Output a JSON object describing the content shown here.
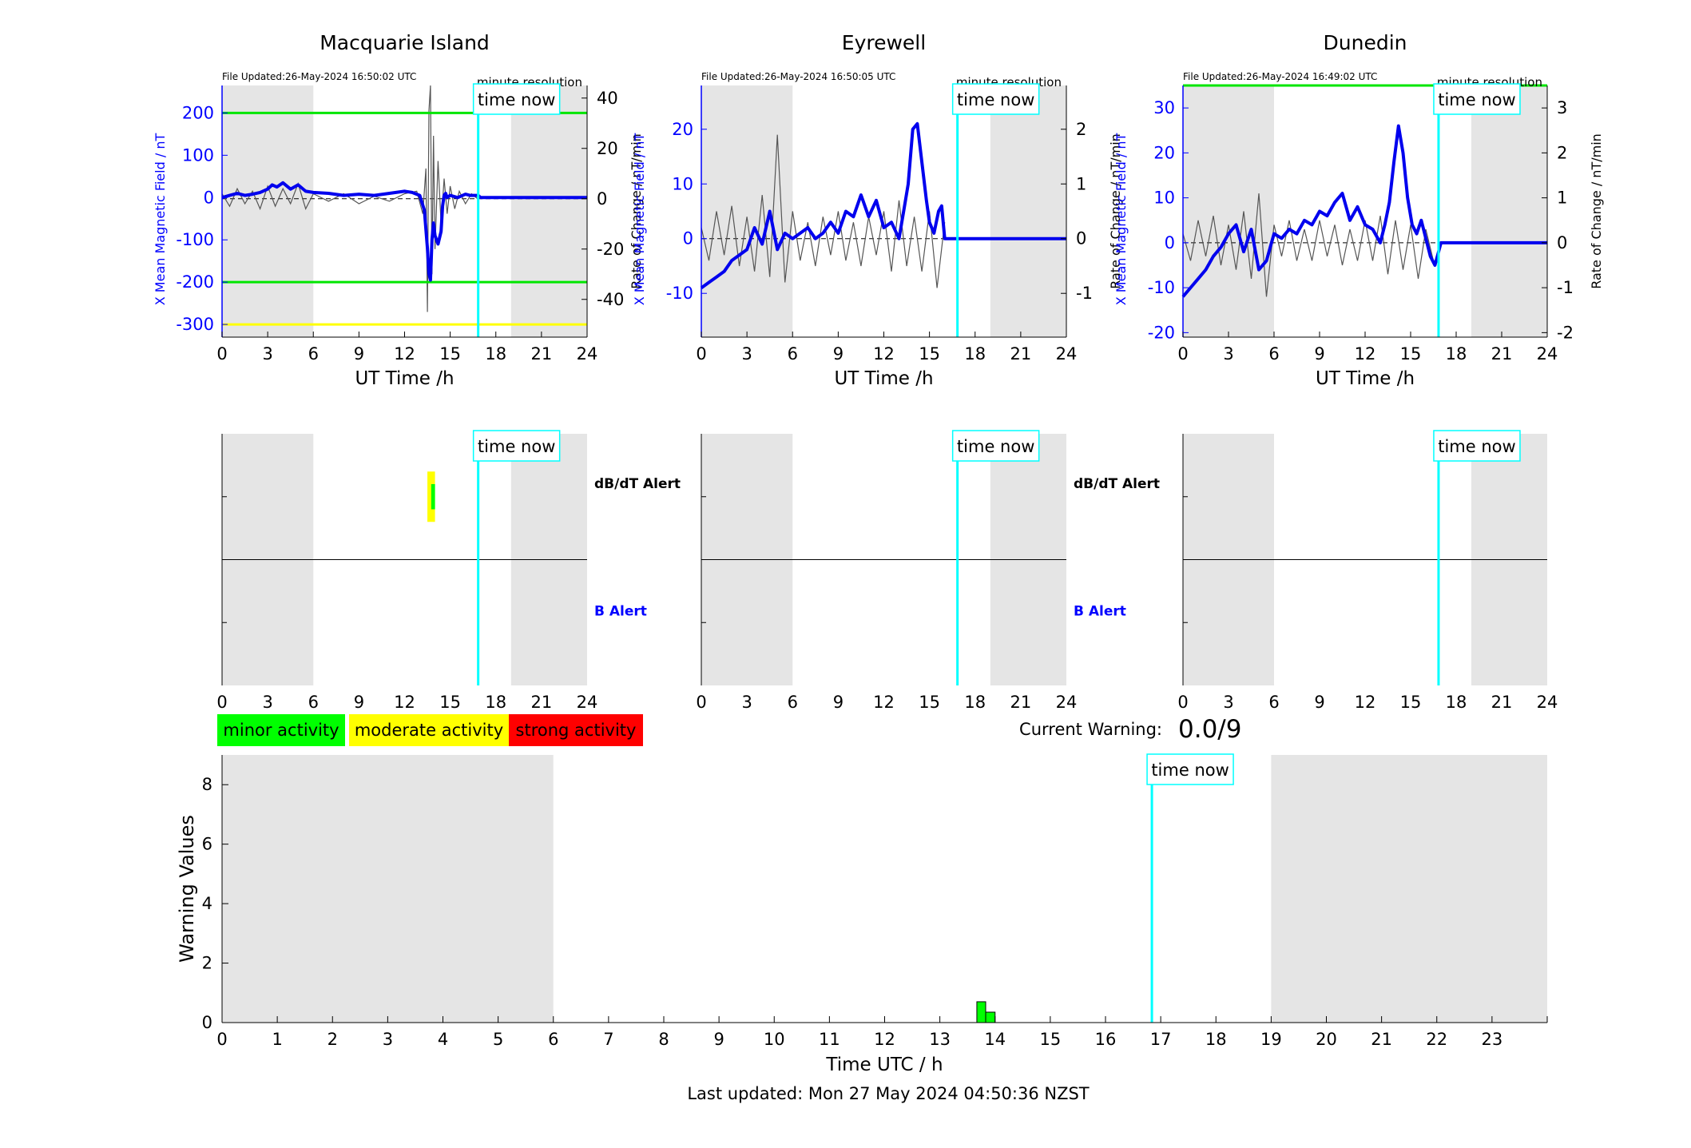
{
  "footer": {
    "last_updated": "Last updated: Mon 27 May 2024 04:50:36 NZST"
  },
  "colors": {
    "night_shade": "#e5e5e5",
    "field_line": "#0000ee",
    "rate_line": "#555555",
    "time_now": "#00ffff",
    "threshold_green": "#00e600",
    "threshold_yellow": "#ffff00",
    "minor": "#00ff00",
    "moderate": "#ffff00",
    "strong": "#ff0000",
    "label_blue": "#0000ff"
  },
  "legend": {
    "items": [
      {
        "label": "minor activity",
        "color": "#00ff00"
      },
      {
        "label": "moderate activity",
        "color": "#ffff00"
      },
      {
        "label": "strong activity",
        "color": "#ff0000"
      }
    ]
  },
  "current_warning": {
    "label": "Current Warning:",
    "value": "0.0/9"
  },
  "common": {
    "time_now_label": "time now",
    "minute_resolution": "minute resolution",
    "dbdt_alert": "dB/dT Alert",
    "b_alert": "B Alert",
    "x_label": "UT Time /h",
    "y_left_label": "X Mean Magnetic Field / nT",
    "y_right_label": "Rate of Change / nT/min",
    "time_now_hour": 16.84,
    "night_periods": [
      [
        0,
        6
      ],
      [
        19,
        24
      ]
    ]
  },
  "chart_data": [
    {
      "type": "line",
      "title": "Macquarie Island",
      "file_updated": "File Updated:26-May-2024 16:50:02 UTC",
      "xlabel": "UT Time /h",
      "ylabel": "X Mean Magnetic Field / nT",
      "ylabel_right": "Rate of Change / nT/min",
      "xlim": [
        0,
        24
      ],
      "xticks": [
        0,
        3,
        6,
        9,
        12,
        15,
        18,
        21,
        24
      ],
      "ylim": [
        -330,
        265
      ],
      "yticks": [
        -300,
        -200,
        -100,
        0,
        100,
        200
      ],
      "ylim_right": [
        -55,
        45
      ],
      "yticks_right": [
        -40,
        -20,
        0,
        20,
        40
      ],
      "thresholds": [
        {
          "y": 200,
          "color": "#00e600"
        },
        {
          "y": -200,
          "color": "#00e600"
        },
        {
          "y": -300,
          "color": "#ffff00"
        }
      ],
      "series": [
        {
          "axis": "left",
          "x": [
            0,
            0.5,
            1,
            1.5,
            2,
            2.5,
            3,
            3.3,
            3.6,
            4,
            4.5,
            5,
            5.5,
            6,
            7,
            8,
            9,
            10,
            11,
            12,
            12.5,
            13,
            13.3,
            13.5,
            13.6,
            13.7,
            13.75,
            13.8,
            13.9,
            14,
            14.2,
            14.4,
            14.5,
            14.6,
            14.7,
            14.8,
            15,
            15.5,
            16,
            16.3,
            16.5,
            16.84,
            17,
            20,
            24
          ],
          "y": [
            0,
            5,
            10,
            5,
            8,
            12,
            20,
            30,
            25,
            35,
            20,
            30,
            15,
            12,
            10,
            5,
            8,
            5,
            10,
            15,
            12,
            5,
            -30,
            -120,
            -180,
            -195,
            -150,
            -100,
            -60,
            -90,
            -110,
            -80,
            -20,
            5,
            10,
            0,
            5,
            0,
            8,
            5,
            5,
            5,
            0,
            0,
            0
          ]
        },
        {
          "axis": "right",
          "x": [
            0,
            0.5,
            1,
            1.5,
            2,
            2.5,
            3,
            3.5,
            4,
            4.5,
            5,
            5.5,
            6,
            7,
            8,
            9,
            10,
            11,
            12,
            12.8,
            13.2,
            13.4,
            13.5,
            13.6,
            13.7,
            13.8,
            13.9,
            14,
            14.2,
            14.4,
            14.6,
            14.8,
            15,
            15.3,
            15.6,
            16,
            16.4,
            16.8
          ],
          "y": [
            2,
            -3,
            4,
            -2,
            3,
            -4,
            5,
            -3,
            4,
            -2,
            6,
            -4,
            2,
            -1,
            2,
            -2,
            1,
            -1,
            2,
            3,
            -6,
            12,
            -45,
            35,
            45,
            -30,
            25,
            -20,
            15,
            -10,
            8,
            -6,
            5,
            -4,
            3,
            -2,
            2,
            0
          ]
        }
      ],
      "alerts": [
        {
          "row": "dbdt",
          "start": 13.5,
          "end": 14,
          "level": "moderate"
        },
        {
          "row": "dbdt",
          "start": 13.75,
          "end": 14,
          "level": "minor"
        }
      ]
    },
    {
      "type": "line",
      "title": "Eyrewell",
      "file_updated": "File Updated:26-May-2024 16:50:05 UTC",
      "xlabel": "UT Time /h",
      "ylabel": "X Mean Magnetic Field / nT",
      "ylabel_right": "Rate of Change / nT/min",
      "xlim": [
        0,
        24
      ],
      "xticks": [
        0,
        3,
        6,
        9,
        12,
        15,
        18,
        21,
        24
      ],
      "ylim": [
        -18,
        28
      ],
      "yticks": [
        -10,
        0,
        10,
        20
      ],
      "ylim_right": [
        -1.8,
        2.8
      ],
      "yticks_right": [
        -1,
        0,
        1,
        2
      ],
      "thresholds": [],
      "series": [
        {
          "axis": "left",
          "x": [
            0,
            0.5,
            1,
            1.5,
            2,
            2.5,
            3,
            3.5,
            4,
            4.5,
            5,
            5.5,
            6,
            6.5,
            7,
            7.5,
            8,
            8.5,
            9,
            9.5,
            10,
            10.5,
            11,
            11.5,
            12,
            12.5,
            13,
            13.3,
            13.6,
            13.9,
            14.2,
            14.5,
            14.8,
            15,
            15.3,
            15.6,
            15.8,
            16,
            16.84,
            17,
            20,
            24
          ],
          "y": [
            -9,
            -8,
            -7,
            -6,
            -4,
            -3,
            -2,
            2,
            -1,
            5,
            -2,
            1,
            0,
            1,
            2,
            0,
            1,
            3,
            1,
            5,
            4,
            8,
            4,
            7,
            2,
            3,
            0,
            5,
            10,
            20,
            21,
            14,
            7,
            3,
            1,
            5,
            6,
            0,
            0,
            0,
            0,
            0
          ]
        },
        {
          "axis": "right",
          "x": [
            0,
            0.5,
            1,
            1.5,
            2,
            2.5,
            3,
            3.5,
            4,
            4.5,
            5,
            5.5,
            6,
            6.5,
            7,
            7.5,
            8,
            8.5,
            9,
            9.5,
            10,
            10.5,
            11,
            11.5,
            12,
            12.5,
            13,
            13.5,
            14,
            14.5,
            15,
            15.5,
            16
          ],
          "y": [
            0.2,
            -0.4,
            0.5,
            -0.3,
            0.6,
            -0.5,
            0.4,
            -0.6,
            0.8,
            -0.7,
            1.9,
            -0.8,
            0.5,
            -0.4,
            0.3,
            -0.5,
            0.4,
            -0.3,
            0.5,
            -0.4,
            0.3,
            -0.5,
            0.4,
            -0.3,
            0.5,
            -0.6,
            0.7,
            -0.5,
            0.4,
            -0.6,
            0.5,
            -0.9,
            0.3
          ]
        }
      ],
      "alerts": []
    },
    {
      "type": "line",
      "title": "Dunedin",
      "file_updated": "File Updated:26-May-2024 16:49:02 UTC",
      "xlabel": "UT Time /h",
      "ylabel": "X Mean Magnetic Field / nT",
      "ylabel_right": "Rate of Change / nT/min",
      "xlim": [
        0,
        24
      ],
      "xticks": [
        0,
        3,
        6,
        9,
        12,
        15,
        18,
        21,
        24
      ],
      "ylim": [
        -21,
        35
      ],
      "yticks": [
        -20,
        -10,
        0,
        10,
        20,
        30
      ],
      "ylim_right": [
        -2.1,
        3.5
      ],
      "yticks_right": [
        -2,
        -1,
        0,
        1,
        2,
        3
      ],
      "thresholds": [
        {
          "y": 35,
          "color": "#00e600"
        }
      ],
      "series": [
        {
          "axis": "left",
          "x": [
            0,
            0.5,
            1,
            1.5,
            2,
            2.5,
            3,
            3.5,
            4,
            4.5,
            5,
            5.5,
            6,
            6.5,
            7,
            7.5,
            8,
            8.5,
            9,
            9.5,
            10,
            10.5,
            11,
            11.5,
            12,
            12.5,
            13,
            13.3,
            13.6,
            13.9,
            14.2,
            14.5,
            14.8,
            15.1,
            15.4,
            15.7,
            16,
            16.3,
            16.6,
            16.84,
            17,
            20,
            24
          ],
          "y": [
            -12,
            -10,
            -8,
            -6,
            -3,
            -1,
            2,
            4,
            -2,
            3,
            -6,
            -4,
            2,
            1,
            3,
            2,
            5,
            4,
            7,
            6,
            9,
            11,
            5,
            8,
            4,
            3,
            0,
            4,
            9,
            18,
            26,
            20,
            10,
            4,
            2,
            5,
            1,
            -3,
            -5,
            -2,
            0,
            0,
            0
          ]
        },
        {
          "axis": "right",
          "x": [
            0,
            0.5,
            1,
            1.5,
            2,
            2.5,
            3,
            3.5,
            4,
            4.5,
            5,
            5.5,
            6,
            6.5,
            7,
            7.5,
            8,
            8.5,
            9,
            9.5,
            10,
            10.5,
            11,
            11.5,
            12,
            12.5,
            13,
            13.5,
            14,
            14.5,
            15,
            15.5,
            16,
            16.5
          ],
          "y": [
            0.2,
            -0.4,
            0.5,
            -0.3,
            0.6,
            -0.5,
            0.4,
            -0.6,
            0.7,
            -0.8,
            1.1,
            -1.2,
            0.4,
            -0.3,
            0.5,
            -0.4,
            0.3,
            -0.4,
            0.5,
            -0.3,
            0.4,
            -0.5,
            0.3,
            -0.4,
            0.5,
            -0.4,
            0.6,
            -0.7,
            0.5,
            -0.6,
            0.4,
            -0.8,
            0.3,
            -0.4
          ]
        }
      ],
      "alerts": []
    },
    {
      "type": "bar",
      "title": "",
      "xlabel": "Time UTC / h",
      "ylabel": "Warning Values",
      "xlim": [
        0,
        24
      ],
      "xticks": [
        0,
        1,
        2,
        3,
        4,
        5,
        6,
        7,
        8,
        9,
        10,
        11,
        12,
        13,
        14,
        15,
        16,
        17,
        18,
        19,
        20,
        21,
        22,
        23
      ],
      "ylim": [
        0,
        9
      ],
      "yticks": [
        0,
        2,
        4,
        6,
        8
      ],
      "bars": [
        {
          "start": 13.67,
          "end": 13.83,
          "value": 0.7,
          "level": "minor"
        },
        {
          "start": 13.83,
          "end": 14.0,
          "value": 0.35,
          "level": "minor"
        }
      ]
    }
  ]
}
